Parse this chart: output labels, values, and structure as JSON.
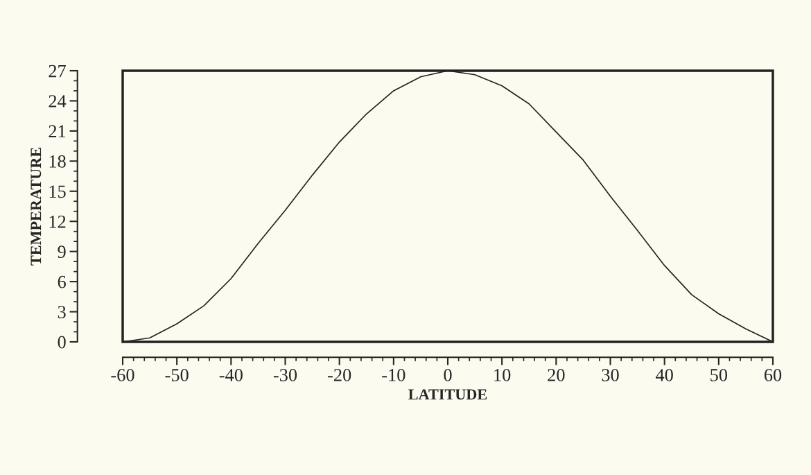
{
  "chart_data": {
    "type": "line",
    "xlabel": "LATITUDE",
    "ylabel": "TEMPERATURE",
    "x": [
      -60,
      -55,
      -50,
      -45,
      -40,
      -35,
      -30,
      -25,
      -20,
      -15,
      -10,
      -5,
      0,
      5,
      10,
      15,
      20,
      25,
      30,
      35,
      40,
      45,
      50,
      55,
      60
    ],
    "series": [
      {
        "color": "#222222",
        "values": [
          0,
          0.4,
          1.8,
          3.6,
          6.3,
          9.8,
          13.1,
          16.6,
          19.9,
          22.7,
          25.0,
          26.4,
          27,
          26.6,
          25.5,
          23.7,
          20.9,
          18.1,
          14.5,
          11.1,
          7.6,
          4.7,
          2.8,
          1.3,
          0
        ]
      }
    ],
    "xlim": [
      -60,
      60
    ],
    "xticks": [
      -60,
      -50,
      -40,
      -30,
      -20,
      -10,
      0,
      10,
      20,
      30,
      40,
      50,
      60
    ],
    "ylim": [
      0,
      27
    ],
    "yticks": [
      0,
      3,
      6,
      9,
      12,
      15,
      18,
      21,
      24,
      27
    ],
    "grid": false,
    "legend": false,
    "marker": "none",
    "line_style": "solid"
  }
}
